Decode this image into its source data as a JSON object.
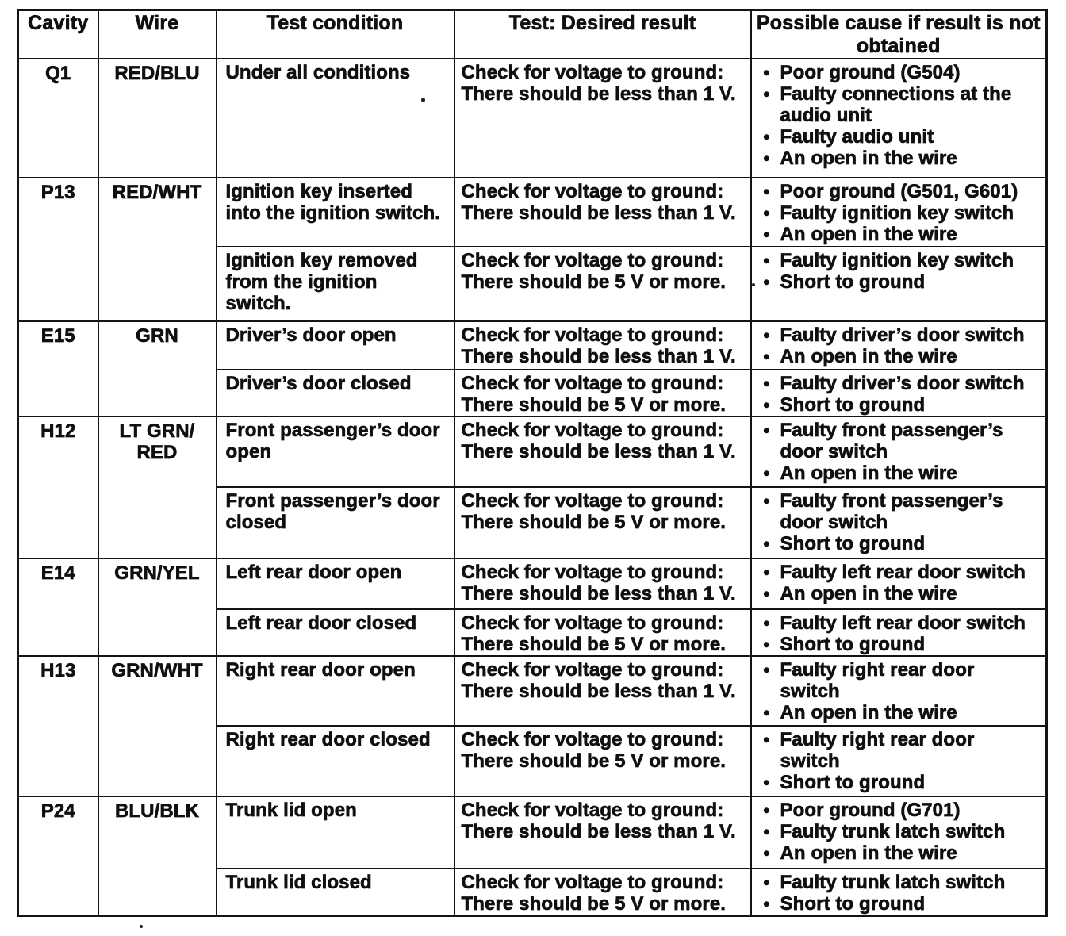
{
  "colors": {
    "ink": "#141414",
    "paper": "#ffffff"
  },
  "table": {
    "bullet_char": "•",
    "headers": [
      {
        "label": "Cavity"
      },
      {
        "label": "Wire"
      },
      {
        "label": "Test condition"
      },
      {
        "label": "Test: Desired result"
      },
      {
        "label": "Possible cause if result is not\nobtained"
      }
    ],
    "groups": [
      {
        "cavity": "Q1",
        "wire": "RED/BLU",
        "subrows": [
          {
            "condition": "Under all conditions",
            "result": "Check for voltage to ground:\nThere should be less than 1 V.",
            "causes": [
              "Poor ground (G504)",
              "Faulty connections at the\naudio unit",
              "Faulty audio unit",
              "An open in the wire"
            ]
          }
        ]
      },
      {
        "cavity": "P13",
        "wire": "RED/WHT",
        "subrows": [
          {
            "condition": "Ignition key inserted\ninto the ignition switch.",
            "result": "Check for voltage to ground:\nThere should be less than 1 V.",
            "causes": [
              "Poor ground (G501, G601)",
              "Faulty ignition key switch",
              "An open in the wire"
            ]
          },
          {
            "condition": "Ignition key removed\nfrom the ignition\nswitch.",
            "result": "Check for voltage to ground:\nThere should be 5 V or more.",
            "causes": [
              "Faulty ignition key switch",
              "Short to ground"
            ]
          }
        ]
      },
      {
        "cavity": "E15",
        "wire": "GRN",
        "subrows": [
          {
            "condition": "Driver’s door open",
            "result": "Check for voltage to ground:\nThere should be less than 1 V.",
            "causes": [
              "Faulty driver’s door switch",
              "An open in the wire"
            ]
          },
          {
            "condition": "Driver’s door closed",
            "result": "Check for voltage to ground:\nThere should be 5 V or more.",
            "causes": [
              "Faulty driver’s door switch",
              "Short to ground"
            ]
          }
        ]
      },
      {
        "cavity": "H12",
        "wire": "LT GRN/\nRED",
        "subrows": [
          {
            "condition": "Front passenger’s door\nopen",
            "result": "Check for voltage to ground:\nThere should be less than 1 V.",
            "causes": [
              "Faulty front passenger’s\ndoor switch",
              "An open in the wire"
            ]
          },
          {
            "condition": "Front passenger’s door\nclosed",
            "result": "Check for voltage to ground:\nThere should be 5 V or more.",
            "causes": [
              "Faulty front passenger’s\ndoor switch",
              "Short to ground"
            ]
          }
        ]
      },
      {
        "cavity": "E14",
        "wire": "GRN/YEL",
        "subrows": [
          {
            "condition": "Left rear door open",
            "result": "Check for voltage to ground:\nThere should be less than 1 V.",
            "causes": [
              "Faulty left rear door switch",
              "An open in the wire"
            ]
          },
          {
            "condition": "Left rear door closed",
            "result": "Check for voltage to ground:\nThere should be 5 V or more.",
            "causes": [
              "Faulty left rear door switch",
              "Short to ground"
            ]
          }
        ]
      },
      {
        "cavity": "H13",
        "wire": "GRN/WHT",
        "subrows": [
          {
            "condition": "Right rear door open",
            "result": "Check for voltage to ground:\nThere should be less than 1 V.",
            "causes": [
              "Faulty right rear door\nswitch",
              "An open in the wire"
            ]
          },
          {
            "condition": "Right rear door closed",
            "result": "Check for voltage to ground:\nThere should be 5 V or more.",
            "causes": [
              "Faulty right rear door\nswitch",
              "Short to ground"
            ]
          }
        ]
      },
      {
        "cavity": "P24",
        "wire": "BLU/BLK",
        "subrows": [
          {
            "condition": "Trunk lid open",
            "result": "Check for voltage to ground:\nThere should be less than 1 V.",
            "causes": [
              "Poor ground (G701)",
              "Faulty trunk latch switch",
              "An open in the wire"
            ]
          },
          {
            "condition": "Trunk lid closed",
            "result": "Check for voltage to ground:\nThere should be 5 V or more.",
            "causes": [
              "Faulty trunk latch switch",
              "Short to ground"
            ]
          }
        ]
      }
    ]
  }
}
